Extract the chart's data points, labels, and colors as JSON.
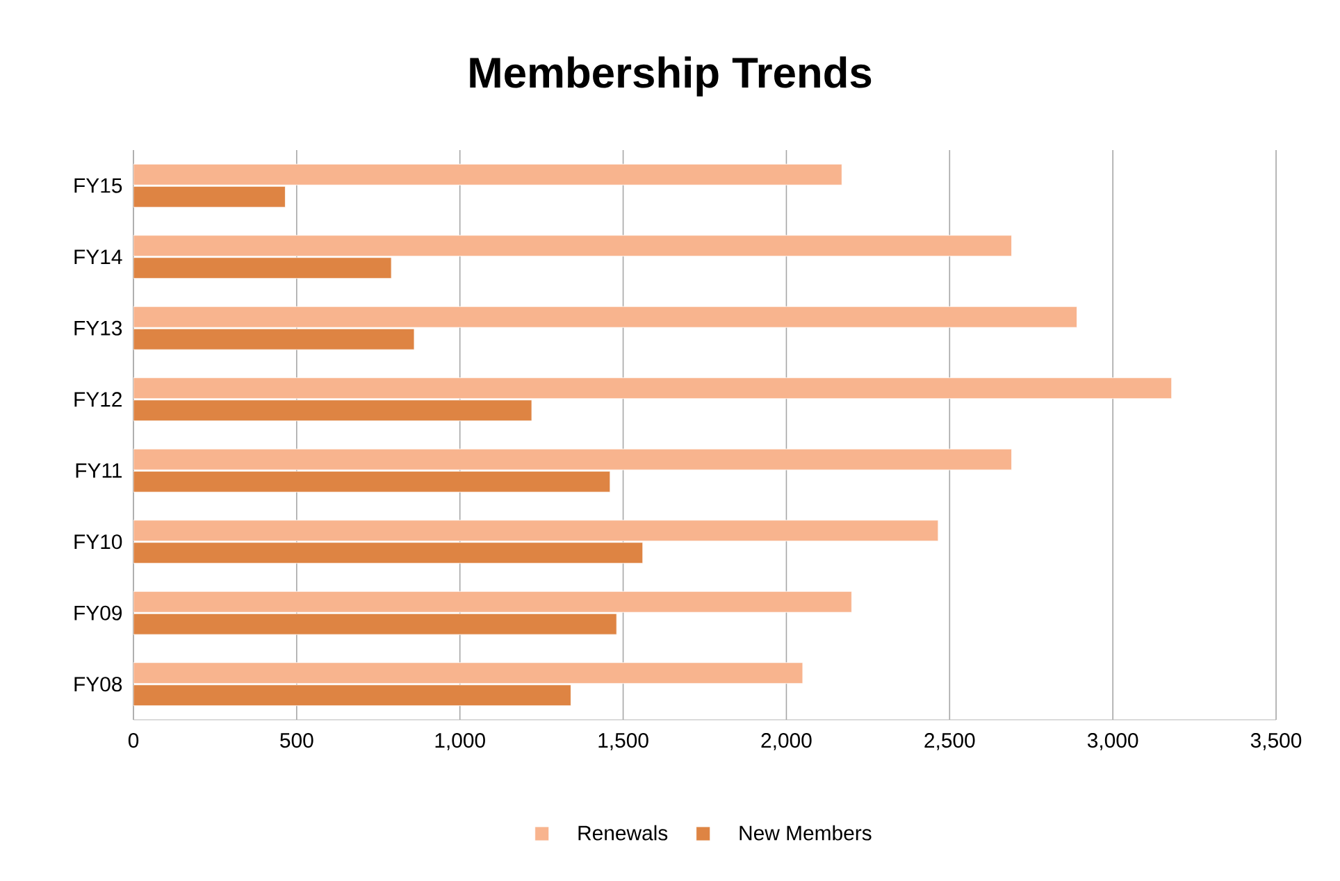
{
  "chart_data": {
    "type": "bar",
    "orientation": "horizontal",
    "title": "Membership Trends",
    "categories": [
      "FY15",
      "FY14",
      "FY13",
      "FY12",
      "FY11",
      "FY10",
      "FY09",
      "FY08"
    ],
    "series": [
      {
        "name": "Renewals",
        "color": "#f8b48e",
        "values": [
          2170,
          2690,
          2890,
          3180,
          2690,
          2465,
          2200,
          2050
        ]
      },
      {
        "name": "New Members",
        "color": "#de8443",
        "values": [
          465,
          790,
          860,
          1220,
          1460,
          1560,
          1480,
          1340
        ]
      }
    ],
    "xlim": [
      0,
      3500
    ],
    "xticks": [
      0,
      500,
      {
        "value": 1000,
        "label": "1,000"
      },
      {
        "value": 1500,
        "label": "1,500"
      },
      {
        "value": 2000,
        "label": "2,000"
      },
      {
        "value": 2500,
        "label": "2,500"
      },
      {
        "value": 3000,
        "label": "3,000"
      },
      {
        "value": 3500,
        "label": "3,500"
      }
    ],
    "grid": "x",
    "legend": "bottom"
  }
}
